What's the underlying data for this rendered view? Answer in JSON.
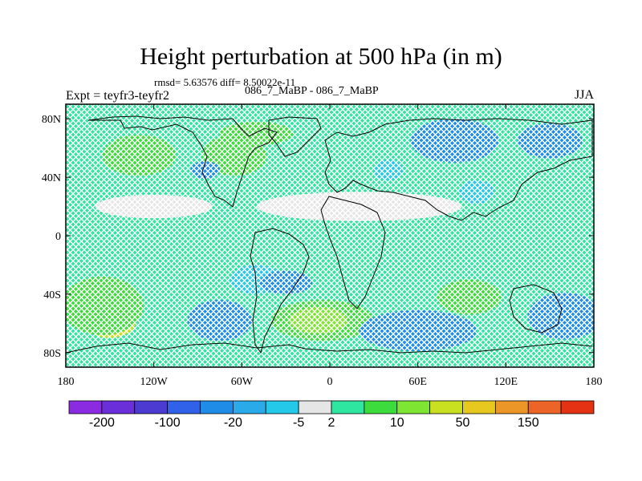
{
  "title": "Height perturbation at 500 hPa (in m)",
  "stats": "rmsd= 5.63576 diff= 8.50022e-11",
  "experiment": "Expt = teyfr3-teyfr2",
  "cases": "086_7_MaBP - 086_7_MaBP",
  "season": "JJA",
  "x_ticks": [
    {
      "lon": -180,
      "label": "180"
    },
    {
      "lon": -120,
      "label": "120W"
    },
    {
      "lon": -60,
      "label": "60W"
    },
    {
      "lon": 0,
      "label": "0"
    },
    {
      "lon": 60,
      "label": "60E"
    },
    {
      "lon": 120,
      "label": "120E"
    },
    {
      "lon": 180,
      "label": "180"
    }
  ],
  "y_ticks": [
    {
      "lat": 80,
      "label": "80N"
    },
    {
      "lat": 40,
      "label": "40N"
    },
    {
      "lat": 0,
      "label": "0"
    },
    {
      "lat": -40,
      "label": "40S"
    },
    {
      "lat": -80,
      "label": "80S"
    }
  ],
  "colorbar": {
    "colors": [
      "#8a2be2",
      "#6a2fd8",
      "#4b3bd0",
      "#2f62e8",
      "#1f8de8",
      "#2aaae8",
      "#24c8e8",
      "#e6e6e6",
      "#2ee6a0",
      "#3ddc3d",
      "#7ee632",
      "#c8e020",
      "#e6c81e",
      "#ec9628",
      "#ec6428",
      "#e63214"
    ],
    "labels": [
      {
        "after": 1,
        "text": "-200"
      },
      {
        "after": 3,
        "text": "-100"
      },
      {
        "after": 5,
        "text": "-20"
      },
      {
        "after": 7,
        "text": "-5"
      },
      {
        "after": 8,
        "text": "2"
      },
      {
        "after": 10,
        "text": "10"
      },
      {
        "after": 12,
        "text": "50"
      },
      {
        "after": 14,
        "text": "150"
      }
    ]
  },
  "fill_colors": {
    "negative_strong": "#1f8de8",
    "negative": "#24c8e8",
    "near_zero": "#e6e6e6",
    "positive": "#3ddc3d",
    "positive_mid": "#7ee632",
    "positive_strong": "#c8e020",
    "positive_peak": "#e6c81e",
    "background": "#2ee6a0"
  },
  "blobs": [
    {
      "lon": -75,
      "lat": -58,
      "rlon": 22,
      "rlat": 14,
      "level": "negative_strong"
    },
    {
      "lon": -150,
      "lat": -58,
      "rlon": 18,
      "rlat": 12,
      "level": "positive_strong"
    },
    {
      "lon": -155,
      "lat": -48,
      "rlon": 28,
      "rlat": 20,
      "level": "positive"
    },
    {
      "lon": -5,
      "lat": -58,
      "rlon": 35,
      "rlat": 14,
      "level": "positive"
    },
    {
      "lon": -8,
      "lat": -58,
      "rlon": 20,
      "rlat": 9,
      "level": "positive_mid"
    },
    {
      "lon": 60,
      "lat": -65,
      "rlon": 40,
      "rlat": 14,
      "level": "negative_strong"
    },
    {
      "lon": 160,
      "lat": -55,
      "rlon": 25,
      "rlat": 16,
      "level": "negative_strong"
    },
    {
      "lon": 95,
      "lat": -42,
      "rlon": 22,
      "rlat": 12,
      "level": "positive"
    },
    {
      "lon": -50,
      "lat": -30,
      "rlon": 18,
      "rlat": 10,
      "level": "negative"
    },
    {
      "lon": -30,
      "lat": -32,
      "rlon": 18,
      "rlat": 8,
      "level": "negative_strong"
    },
    {
      "lon": 85,
      "lat": 65,
      "rlon": 30,
      "rlat": 15,
      "level": "negative_strong"
    },
    {
      "lon": 150,
      "lat": 65,
      "rlon": 22,
      "rlat": 12,
      "level": "negative_strong"
    },
    {
      "lon": -130,
      "lat": 55,
      "rlon": 25,
      "rlat": 14,
      "level": "positive"
    },
    {
      "lon": -65,
      "lat": 55,
      "rlon": 22,
      "rlat": 14,
      "level": "positive"
    },
    {
      "lon": -85,
      "lat": 45,
      "rlon": 10,
      "rlat": 6,
      "level": "negative_strong"
    },
    {
      "lon": -50,
      "lat": 70,
      "rlon": 25,
      "rlat": 8,
      "level": "positive"
    },
    {
      "lon": 100,
      "lat": 30,
      "rlon": 12,
      "rlat": 8,
      "level": "negative"
    },
    {
      "lon": 40,
      "lat": 45,
      "rlon": 10,
      "rlat": 7,
      "level": "negative"
    },
    {
      "lon": 20,
      "lat": 20,
      "rlon": 70,
      "rlat": 10,
      "level": "near_zero"
    },
    {
      "lon": -120,
      "lat": 20,
      "rlon": 40,
      "rlat": 8,
      "level": "near_zero"
    }
  ]
}
